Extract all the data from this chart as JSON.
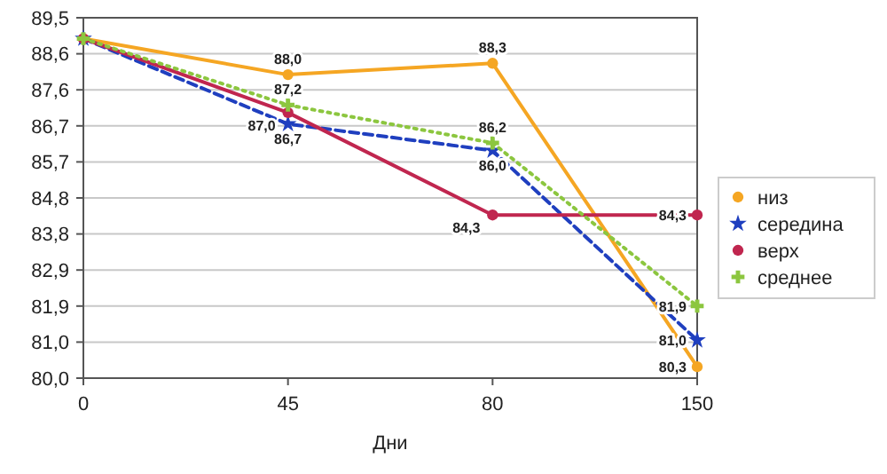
{
  "chart_data": {
    "type": "line",
    "xlabel": "Дни",
    "categories": [
      "0",
      "45",
      "80",
      "150"
    ],
    "ylim": [
      80,
      89.5
    ],
    "yticks": [
      {
        "value": 80,
        "label": "80,0"
      },
      {
        "value": 80.95,
        "label": "81,0"
      },
      {
        "value": 81.9,
        "label": "81,9"
      },
      {
        "value": 82.85,
        "label": "82,9"
      },
      {
        "value": 83.8,
        "label": "83,8"
      },
      {
        "value": 84.75,
        "label": "84,8"
      },
      {
        "value": 85.7,
        "label": "85,7"
      },
      {
        "value": 86.65,
        "label": "86,7"
      },
      {
        "value": 87.6,
        "label": "87,6"
      },
      {
        "value": 88.55,
        "label": "88,6"
      },
      {
        "value": 89.5,
        "label": "89,5"
      }
    ],
    "grid": "y",
    "legend": "right",
    "series": [
      {
        "name": "низ",
        "color": "#f5a623",
        "marker": "circle",
        "line_style": "solid",
        "values": [
          88.95,
          88.0,
          88.3,
          80.3
        ],
        "value_labels": [
          null,
          "88,0",
          "88,3",
          "80,3"
        ]
      },
      {
        "name": "середина",
        "color": "#1f3fbf",
        "marker": "star",
        "line_style": "dashed",
        "values": [
          88.95,
          86.7,
          86.0,
          81.0
        ],
        "value_labels": [
          null,
          "86,7",
          "86,0",
          "81,0"
        ]
      },
      {
        "name": "верх",
        "color": "#c0264f",
        "marker": "circle",
        "line_style": "solid",
        "values": [
          88.95,
          87.0,
          84.3,
          84.3
        ],
        "value_labels": [
          null,
          "87,0",
          "84,3",
          "84,3"
        ]
      },
      {
        "name": "среднее",
        "color": "#8cc63f",
        "marker": "cross",
        "line_style": "dotted",
        "values": [
          88.95,
          87.2,
          86.2,
          81.9
        ],
        "value_labels": [
          null,
          "87,2",
          "86,2",
          "81,9"
        ]
      }
    ]
  }
}
